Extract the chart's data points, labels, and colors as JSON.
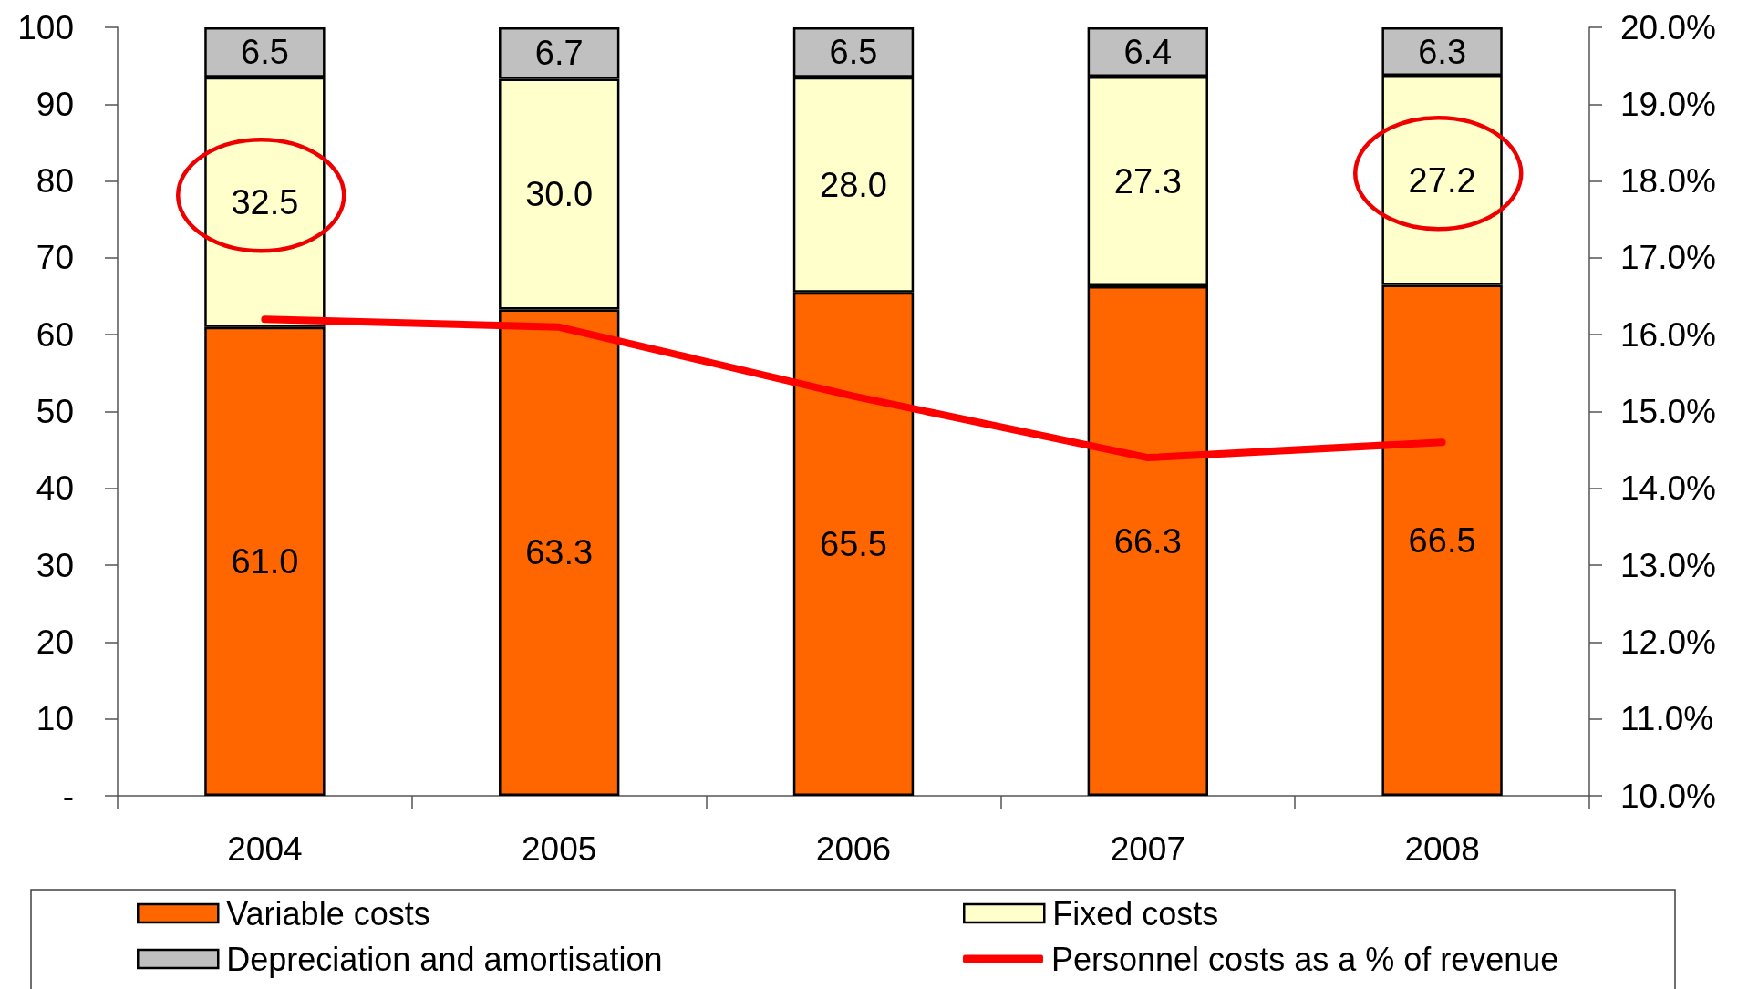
{
  "chart_data": {
    "type": "bar",
    "stacked": true,
    "categories": [
      "2004",
      "2005",
      "2006",
      "2007",
      "2008"
    ],
    "series": [
      {
        "name": "Variable costs",
        "color": "#ff6600",
        "values": [
          61.0,
          63.3,
          65.5,
          66.3,
          66.5
        ],
        "value_labels": [
          "61.0",
          "63.3",
          "65.5",
          "66.3",
          "66.5"
        ]
      },
      {
        "name": "Fixed costs",
        "color": "#ffffcc",
        "values": [
          32.5,
          30.0,
          28.0,
          27.3,
          27.2
        ],
        "value_labels": [
          "32.5",
          "30.0",
          "28.0",
          "27.3",
          "27.2"
        ]
      },
      {
        "name": "Depreciation and amortisation",
        "color": "#c0c0c0",
        "values": [
          6.5,
          6.7,
          6.5,
          6.4,
          6.3
        ],
        "value_labels": [
          "6.5",
          "6.7",
          "6.5",
          "6.4",
          "6.3"
        ]
      },
      {
        "name": "Personnel costs as a % of revenue",
        "type": "line",
        "axis": "y2",
        "color": "#ff0000",
        "marker": "none",
        "line_style": "solid",
        "values": [
          16.2,
          16.1,
          15.2,
          14.4,
          14.6
        ]
      }
    ],
    "ylim": [
      0,
      100
    ],
    "yticks": [
      {
        "value": 0,
        "label": "-"
      },
      10,
      20,
      30,
      40,
      50,
      60,
      70,
      80,
      90,
      100
    ],
    "y2lim": [
      10,
      20
    ],
    "y2ticks": [
      {
        "value": 10,
        "label": "10.0%"
      },
      {
        "value": 11,
        "label": "11.0%"
      },
      {
        "value": 12,
        "label": "12.0%"
      },
      {
        "value": 13,
        "label": "13.0%"
      },
      {
        "value": 14,
        "label": "14.0%"
      },
      {
        "value": 15,
        "label": "15.0%"
      },
      {
        "value": 16,
        "label": "16.0%"
      },
      {
        "value": 17,
        "label": "17.0%"
      },
      {
        "value": 18,
        "label": "18.0%"
      },
      {
        "value": 19,
        "label": "19.0%"
      },
      {
        "value": 20,
        "label": "20.0%"
      }
    ],
    "grid": false,
    "legend": "bottom"
  }
}
